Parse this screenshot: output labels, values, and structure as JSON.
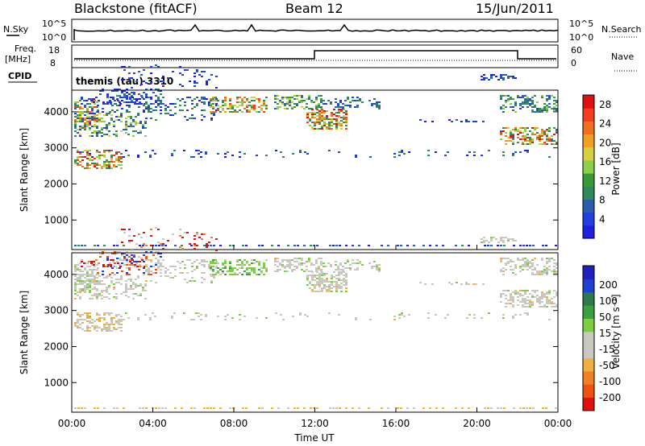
{
  "header": {
    "radar": "Blackstone (fitACF)",
    "beam": "Beam 12",
    "date": "15/Jun/2011",
    "cpid": "themis (tau) 3310"
  },
  "panels": {
    "nsky": {
      "label": "N.Sky",
      "ticks": [
        "10^5",
        "10^0"
      ]
    },
    "nsearch": {
      "label": "N.Search",
      "ticks": [
        "10^5",
        "10^0"
      ]
    },
    "freq": {
      "label1": "Freq.",
      "label2": "[MHz]",
      "ticks": [
        "18",
        "8"
      ]
    },
    "nave": {
      "label": "Nave",
      "ticks": [
        "60",
        "0"
      ]
    },
    "cpid_label": "CPID"
  },
  "colors": {
    "power": [
      "#1f1fe0",
      "#1f3fe0",
      "#2a5fb0",
      "#2e8a5a",
      "#3a9a3a",
      "#8ad04a",
      "#d4d040",
      "#f0a020",
      "#f07020",
      "#f04020",
      "#e01010"
    ],
    "velocity": [
      "#2020c0",
      "#2040d0",
      "#2e7a4a",
      "#3aa040",
      "#7cd040",
      "#c8c8c0",
      "#c8c8c0",
      "#f0b040",
      "#f08020",
      "#f05010",
      "#e01010"
    ],
    "gray": "#c8c8c0"
  },
  "chart_data": [
    {
      "type": "heatmap",
      "name": "power",
      "xlabel": "",
      "ylabel": "Slant Range [km]",
      "x_ticks": [
        "00:00",
        "04:00",
        "08:00",
        "12:00",
        "16:00",
        "20:00",
        "00:00"
      ],
      "y_ticks": [
        1000,
        2000,
        3000,
        4000
      ],
      "ylim": [
        180,
        4600
      ],
      "colorbar": {
        "label": "Power [dB]",
        "ticks": [
          4,
          8,
          12,
          16,
          20,
          24,
          28
        ],
        "range": [
          0,
          30
        ]
      }
    },
    {
      "type": "heatmap",
      "name": "velocity",
      "xlabel": "Time UT",
      "ylabel": "Slant Range [km]",
      "x_ticks": [
        "00:00",
        "04:00",
        "08:00",
        "12:00",
        "16:00",
        "20:00",
        "00:00"
      ],
      "y_ticks": [
        1000,
        2000,
        3000,
        4000
      ],
      "ylim": [
        180,
        4600
      ],
      "colorbar": {
        "label": "Velocity [m s⁻¹]",
        "ticks": [
          200,
          100,
          50,
          15,
          -15,
          -50,
          -100,
          -200
        ]
      }
    }
  ]
}
